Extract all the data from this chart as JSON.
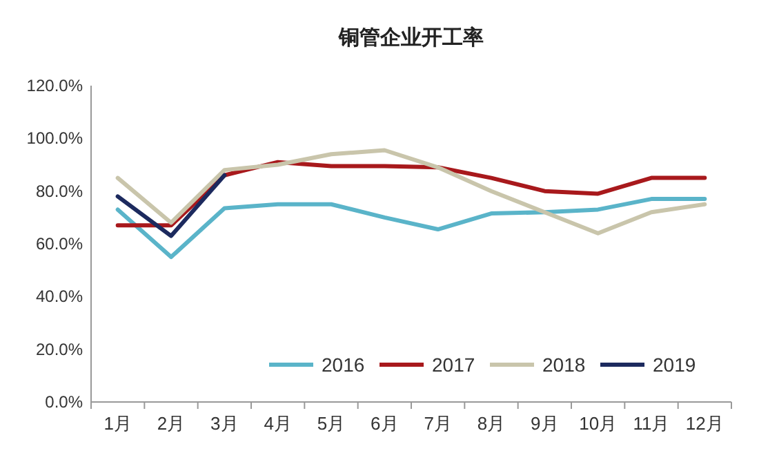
{
  "chart_data": {
    "type": "line",
    "title": "铜管企业开工率",
    "categories": [
      "1月",
      "2月",
      "3月",
      "4月",
      "5月",
      "6月",
      "7月",
      "8月",
      "9月",
      "10月",
      "11月",
      "12月"
    ],
    "ylim": [
      0,
      120
    ],
    "yticks": [
      {
        "value": 0,
        "label": "0.0%"
      },
      {
        "value": 20,
        "label": "20.0%"
      },
      {
        "value": 40,
        "label": "40.0%"
      },
      {
        "value": 60,
        "label": "60.0%"
      },
      {
        "value": 80,
        "label": "80.0%"
      },
      {
        "value": 100,
        "label": "100.0%"
      },
      {
        "value": 120,
        "label": "120.0%"
      }
    ],
    "grid": false,
    "legend": "bottom right",
    "marker": "none",
    "line_style": "solid",
    "series": [
      {
        "name": "2016",
        "color": "#5ab4c9",
        "values": [
          73,
          55,
          73.5,
          75,
          75,
          70,
          65.5,
          71.5,
          72,
          73,
          77,
          77
        ]
      },
      {
        "name": "2017",
        "color": "#a8191c",
        "values": [
          67,
          67,
          86,
          91,
          89.5,
          89.5,
          89,
          85,
          80,
          79,
          85,
          85
        ]
      },
      {
        "name": "2018",
        "color": "#c9c5ab",
        "values": [
          85,
          68,
          88,
          90,
          94,
          95.5,
          89,
          80,
          72,
          64,
          72,
          75
        ]
      },
      {
        "name": "2019",
        "color": "#1c2a5e",
        "values": [
          78,
          63,
          86,
          null,
          null,
          null,
          null,
          null,
          null,
          null,
          null,
          null
        ]
      }
    ]
  }
}
